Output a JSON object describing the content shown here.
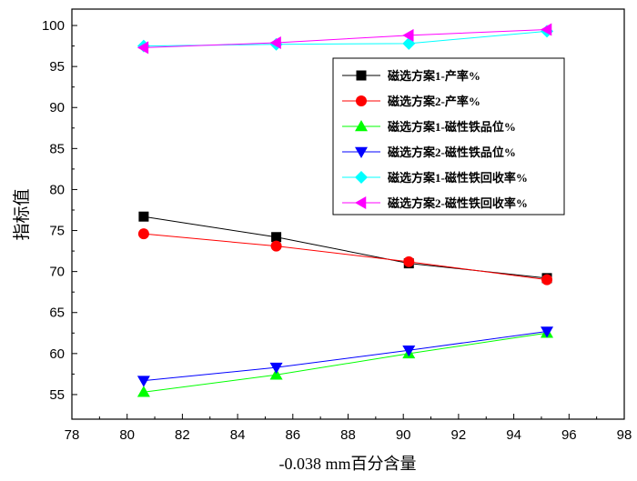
{
  "chart_data": {
    "type": "line",
    "title": "",
    "xlabel": "-0.038 mm百分含量",
    "ylabel": "指标值",
    "xlim": [
      78,
      98
    ],
    "ylim": [
      52,
      102
    ],
    "xticks": [
      78,
      80,
      82,
      84,
      86,
      88,
      90,
      92,
      94,
      96,
      98
    ],
    "yticks": [
      55,
      60,
      65,
      70,
      75,
      80,
      85,
      90,
      95,
      100
    ],
    "x": [
      80.6,
      85.4,
      90.2,
      95.2
    ],
    "legend_position": "upper-right",
    "series": [
      {
        "name": "磁选方案1-产率%",
        "marker": "square",
        "color": "#000000",
        "values": [
          76.7,
          74.2,
          71.0,
          69.2
        ]
      },
      {
        "name": "磁选方案2-产率%",
        "marker": "circle",
        "color": "#ff0000",
        "values": [
          74.6,
          73.1,
          71.2,
          69.0
        ]
      },
      {
        "name": "磁选方案1-磁性铁品位%",
        "marker": "triangle-up",
        "color": "#00ff00",
        "values": [
          55.3,
          57.4,
          60.0,
          62.5
        ]
      },
      {
        "name": "磁选方案2-磁性铁品位%",
        "marker": "triangle-down",
        "color": "#0000ff",
        "values": [
          56.7,
          58.3,
          60.4,
          62.7
        ]
      },
      {
        "name": "磁选方案1-磁性铁回收率%",
        "marker": "diamond",
        "color": "#00ffff",
        "values": [
          97.5,
          97.7,
          97.8,
          99.3
        ]
      },
      {
        "name": "磁选方案2-磁性铁回收率%",
        "marker": "triangle-left",
        "color": "#ff00ff",
        "values": [
          97.3,
          97.9,
          98.8,
          99.5
        ]
      }
    ]
  }
}
